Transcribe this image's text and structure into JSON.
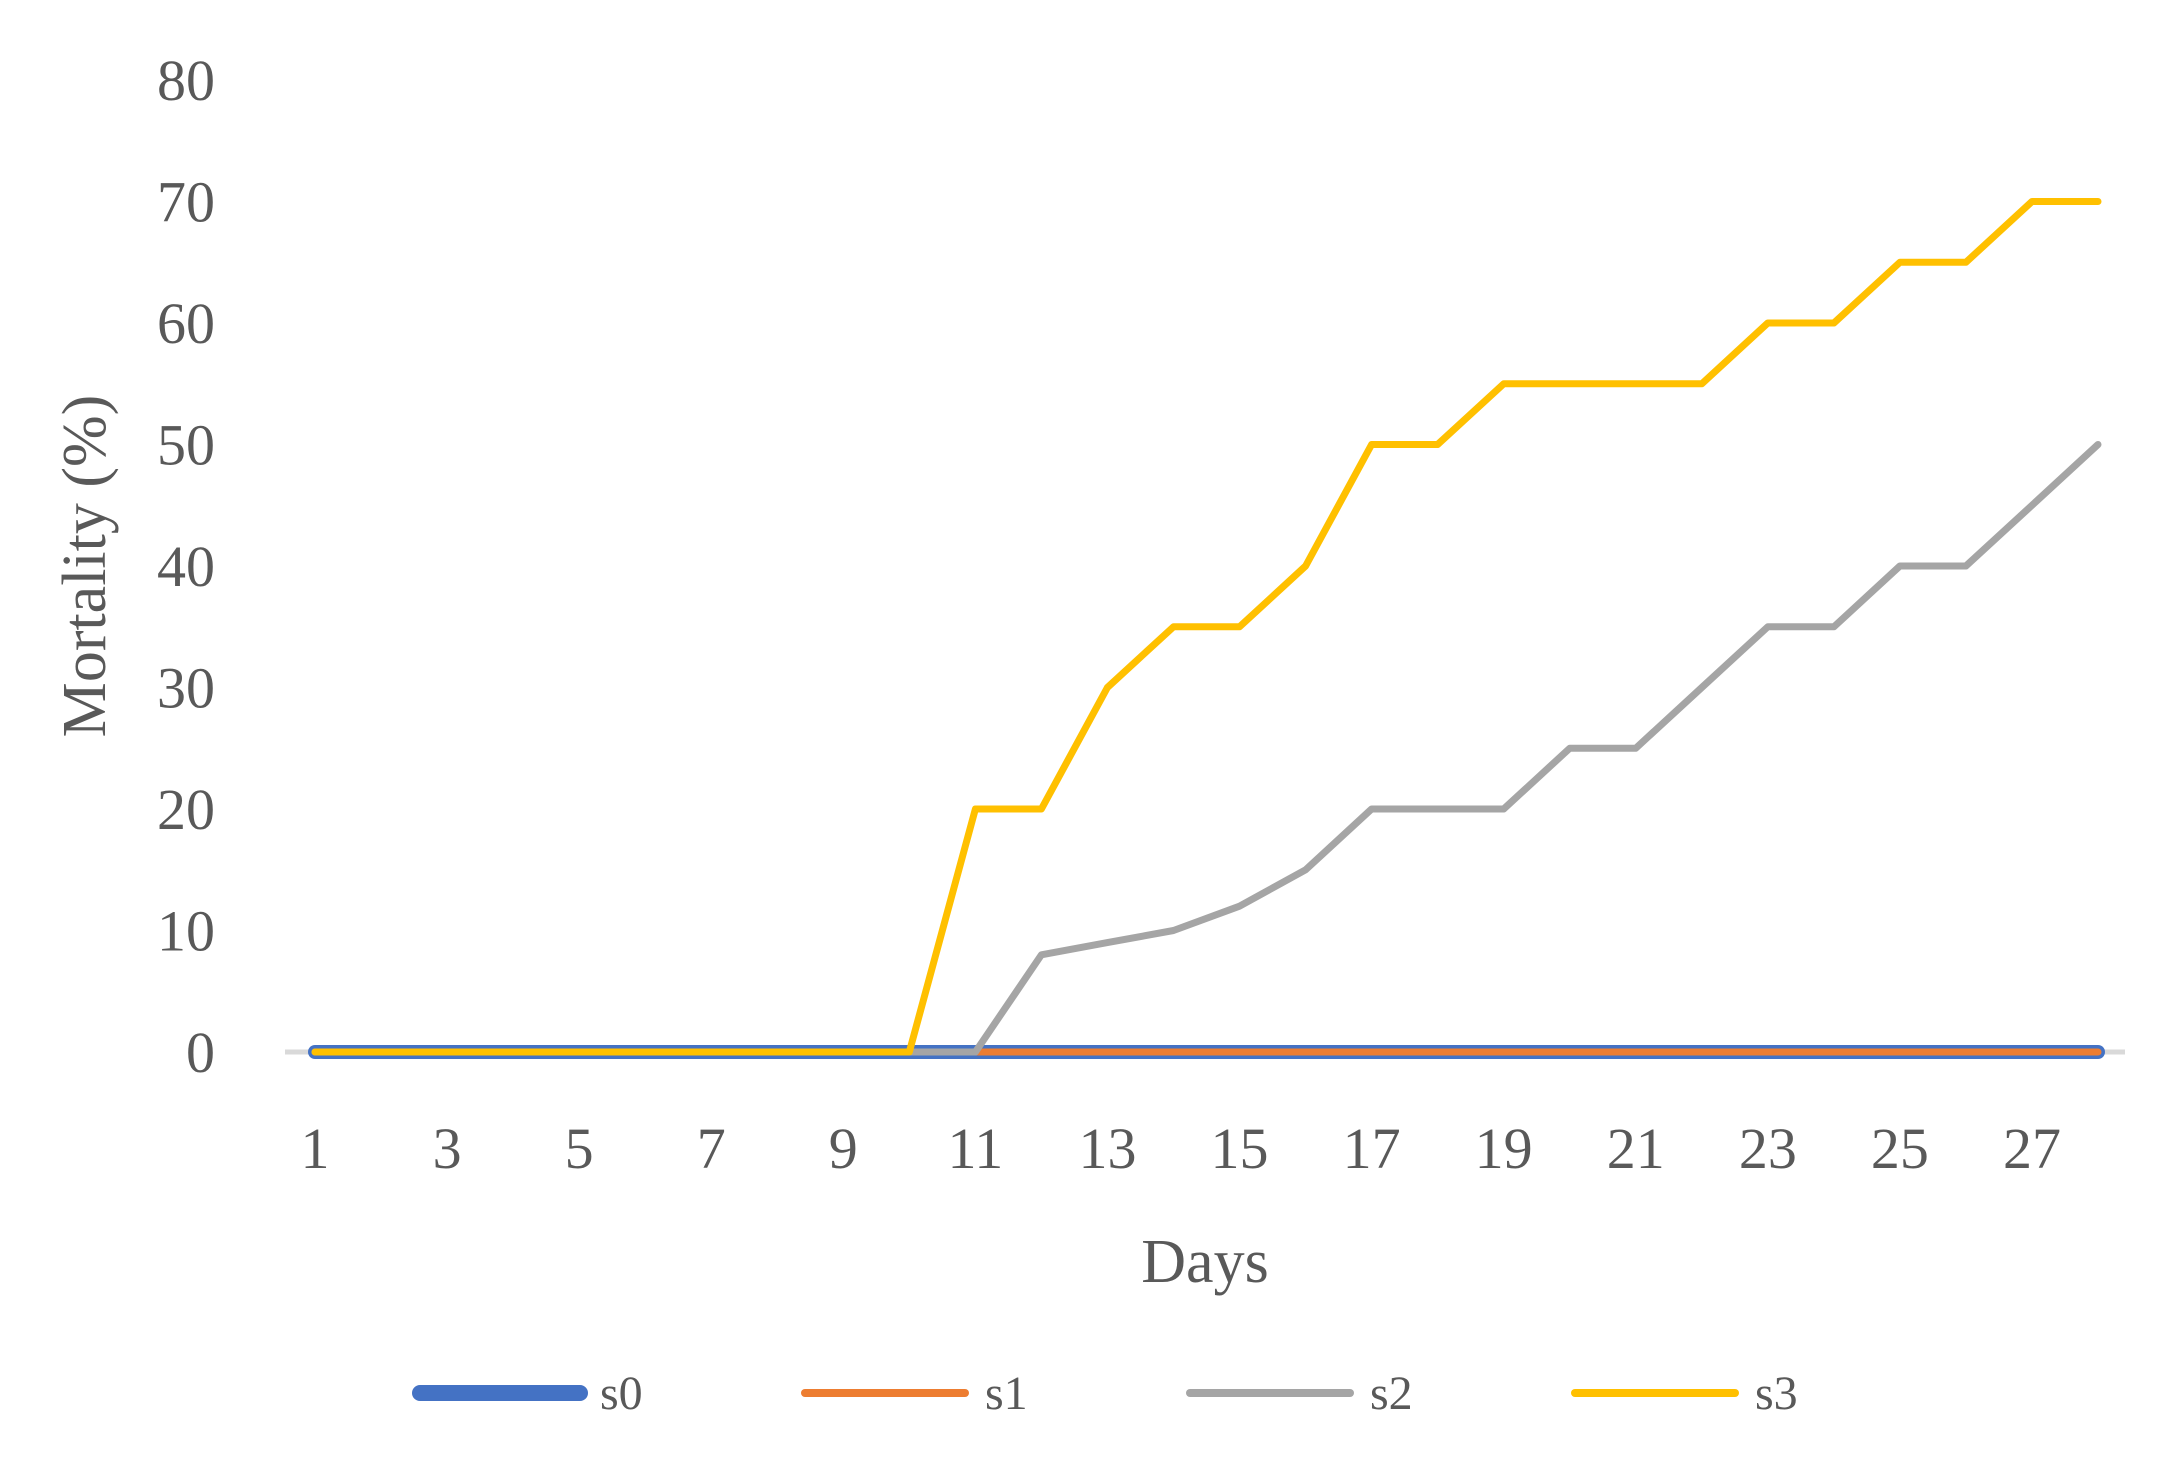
{
  "chart_data": {
    "type": "line",
    "title": "",
    "xlabel": "Days",
    "ylabel": "Mortality (%)",
    "x": [
      1,
      2,
      3,
      4,
      5,
      6,
      7,
      8,
      9,
      10,
      11,
      12,
      13,
      14,
      15,
      16,
      17,
      18,
      19,
      20,
      21,
      22,
      23,
      24,
      25,
      26,
      27,
      28
    ],
    "x_tick_labels": [
      "1",
      "3",
      "5",
      "7",
      "9",
      "11",
      "13",
      "15",
      "17",
      "19",
      "21",
      "23",
      "25",
      "27"
    ],
    "ylim": [
      0,
      80
    ],
    "y_ticks": [
      0,
      10,
      20,
      30,
      40,
      50,
      60,
      70,
      80
    ],
    "grid": false,
    "legend_position": "bottom",
    "series": [
      {
        "name": "s0",
        "color": "#4472C4",
        "values": [
          0,
          0,
          0,
          0,
          0,
          0,
          0,
          0,
          0,
          0,
          0,
          0,
          0,
          0,
          0,
          0,
          0,
          0,
          0,
          0,
          0,
          0,
          0,
          0,
          0,
          0,
          0,
          0
        ]
      },
      {
        "name": "s1",
        "color": "#ED7D31",
        "values": [
          0,
          0,
          0,
          0,
          0,
          0,
          0,
          0,
          0,
          0,
          0,
          0,
          0,
          0,
          0,
          0,
          0,
          0,
          0,
          0,
          0,
          0,
          0,
          0,
          0,
          0,
          0,
          0
        ]
      },
      {
        "name": "s2",
        "color": "#A5A5A5",
        "values": [
          0,
          0,
          0,
          0,
          0,
          0,
          0,
          0,
          0,
          0,
          0,
          8,
          9,
          10,
          12,
          15,
          20,
          20,
          20,
          25,
          25,
          30,
          35,
          35,
          40,
          40,
          45,
          50
        ]
      },
      {
        "name": "s3",
        "color": "#FFC000",
        "values": [
          0,
          0,
          0,
          0,
          0,
          0,
          0,
          0,
          0,
          0,
          20,
          20,
          30,
          35,
          35,
          40,
          50,
          50,
          55,
          55,
          55,
          55,
          60,
          60,
          65,
          65,
          70,
          70
        ]
      }
    ]
  }
}
